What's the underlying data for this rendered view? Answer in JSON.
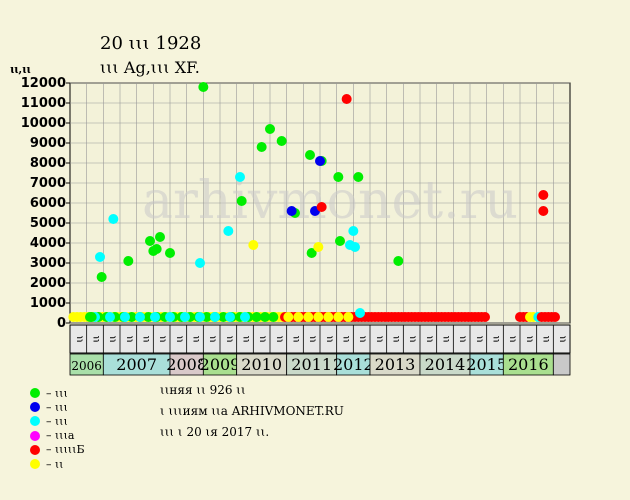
{
  "header": {
    "title": "20 ꙇꙇꙇ 1928",
    "subtitle": "ꙇꙇꙇ Ag,ꙇꙇꙇ XF.",
    "y_unit": "ꙇꙇ,ꙇꙇ"
  },
  "watermark": "arhivmonet.ru",
  "colors": {
    "background": "#f6f4dc",
    "plot_bg": "#f3f2d9",
    "grid": "#999999",
    "green": "#00ee00",
    "blue": "#0000ee",
    "cyan": "#00ffff",
    "magenta": "#ff00ff",
    "red": "#ff0000",
    "yellow": "#ffff00"
  },
  "chart_data": {
    "type": "scatter",
    "ylim": [
      0,
      12000
    ],
    "y_ticks": [
      0,
      1000,
      2000,
      3000,
      4000,
      5000,
      6000,
      7000,
      8000,
      9000,
      10000,
      11000,
      12000
    ],
    "grid": true,
    "x_month_labels": [
      "ꙇꙇ",
      "ꙇꙇ",
      "ꙇꙇ",
      "ꙇꙇ",
      "ꙇꙇ",
      "ꙇꙇ",
      "ꙇꙇ",
      "ꙇꙇ",
      "ꙇꙇ",
      "ꙇꙇ",
      "ꙇꙇ",
      "ꙇꙇ",
      "ꙇꙇ",
      "ꙇꙇ",
      "ꙇꙇ",
      "ꙇꙇ",
      "ꙇꙇ",
      "ꙇꙇ",
      "ꙇꙇ",
      "ꙇꙇ",
      "ꙇꙇ",
      "ꙇꙇ",
      "ꙇꙇ",
      "ꙇꙇ",
      "ꙇꙇ",
      "ꙇꙇ",
      "ꙇꙇ",
      "ꙇꙇ",
      "ꙇꙇ",
      "ꙇꙇ"
    ],
    "years": [
      {
        "label": "2006",
        "start": 0,
        "end": 2,
        "color": "#a9dfa9"
      },
      {
        "label": "2007",
        "start": 2,
        "end": 6,
        "color": "#a9dfd9"
      },
      {
        "label": "2008",
        "start": 6,
        "end": 8,
        "color": "#d9c9c9"
      },
      {
        "label": "2009",
        "start": 8,
        "end": 10,
        "color": "#a9df8f"
      },
      {
        "label": "2010",
        "start": 10,
        "end": 13,
        "color": "#d9d9c9"
      },
      {
        "label": "2011",
        "start": 13,
        "end": 16,
        "color": "#c9d9c9"
      },
      {
        "label": "2012",
        "start": 16,
        "end": 18,
        "color": "#a9dfd9"
      },
      {
        "label": "2013",
        "start": 18,
        "end": 21,
        "color": "#d9d9c9"
      },
      {
        "label": "2014",
        "start": 21,
        "end": 24,
        "color": "#c9d9c9"
      },
      {
        "label": "2015",
        "start": 24,
        "end": 26,
        "color": "#a9dfd9"
      },
      {
        "label": "2016",
        "start": 26,
        "end": 29,
        "color": "#a9df8f"
      }
    ],
    "series": [
      {
        "color_key": "green",
        "points": [
          [
            1.3,
            300
          ],
          [
            1.9,
            2300
          ],
          [
            3.5,
            3100
          ],
          [
            4.8,
            4100
          ],
          [
            5.0,
            3600
          ],
          [
            5.2,
            3700
          ],
          [
            5.4,
            4300
          ],
          [
            6.0,
            3500
          ],
          [
            8.0,
            11800
          ],
          [
            10.3,
            6100
          ],
          [
            11.5,
            8800
          ],
          [
            12.0,
            9700
          ],
          [
            12.7,
            9100
          ],
          [
            13.5,
            5500
          ],
          [
            14.4,
            8400
          ],
          [
            15.1,
            8100
          ],
          [
            16.1,
            7300
          ],
          [
            16.2,
            4100
          ],
          [
            17.3,
            7300
          ],
          [
            19.7,
            3100
          ],
          [
            14.5,
            3500
          ]
        ]
      },
      {
        "color_key": "blue",
        "points": [
          [
            13.3,
            5600
          ],
          [
            14.7,
            5600
          ],
          [
            15.0,
            8100
          ]
        ]
      },
      {
        "color_key": "cyan",
        "points": [
          [
            1.8,
            3300
          ],
          [
            2.6,
            5200
          ],
          [
            7.8,
            3000
          ],
          [
            9.5,
            4600
          ],
          [
            10.2,
            7300
          ],
          [
            16.8,
            3900
          ],
          [
            17.0,
            4600
          ],
          [
            17.1,
            3800
          ],
          [
            17.4,
            500
          ]
        ]
      },
      {
        "color_key": "magenta",
        "points": []
      },
      {
        "color_key": "red",
        "points": [
          [
            16.6,
            11200
          ],
          [
            15.1,
            5800
          ],
          [
            28.4,
            6400
          ],
          [
            28.4,
            5600
          ]
        ]
      },
      {
        "color_key": "yellow",
        "points": [
          [
            11.0,
            3900
          ],
          [
            14.9,
            3800
          ]
        ]
      }
    ],
    "floor_runs": [
      {
        "color_key": "yellow",
        "from": 0.2,
        "to": 12.8,
        "step": 0.22
      },
      {
        "color_key": "green",
        "from": 1.2,
        "to": 12.3,
        "step": 0.5
      },
      {
        "color_key": "cyan",
        "from": 1.5,
        "to": 10.5,
        "step": 0.9
      },
      {
        "color_key": "red",
        "from": 12.9,
        "to": 25.0,
        "step": 0.2
      },
      {
        "color_key": "yellow",
        "from": 13.1,
        "to": 17.2,
        "step": 0.6
      },
      {
        "color_key": "red",
        "from": 27.0,
        "to": 27.4,
        "step": 0.2
      },
      {
        "color_key": "yellow",
        "from": 27.6,
        "to": 27.8,
        "step": 0.2
      },
      {
        "color_key": "cyan",
        "from": 28.1,
        "to": 28.2,
        "step": 0.2
      },
      {
        "color_key": "red",
        "from": 28.3,
        "to": 29.1,
        "step": 0.2
      }
    ],
    "floor_value": 300
  },
  "legend": [
    {
      "color_key": "green",
      "label": "– ꙇꙇꙇ"
    },
    {
      "color_key": "blue",
      "label": "– ꙇꙇꙇ"
    },
    {
      "color_key": "cyan",
      "label": "– ꙇꙇꙇ"
    },
    {
      "color_key": "magenta",
      "label": "– ꙇꙇꙇа"
    },
    {
      "color_key": "red",
      "label": "– ꙇꙇꙇꙇꙇБ"
    },
    {
      "color_key": "yellow",
      "label": "– ꙇꙇ"
    }
  ],
  "info": [
    "ꙇꙇняя ꙇꙇ 926 ꙇꙇ",
    "ꙇ ꙇꙇꙇиям ꙇꙇа ARHIVMONET.RU",
    "ꙇꙇꙇ ꙇ 20 ꙇя 2017 ꙇꙇ."
  ]
}
